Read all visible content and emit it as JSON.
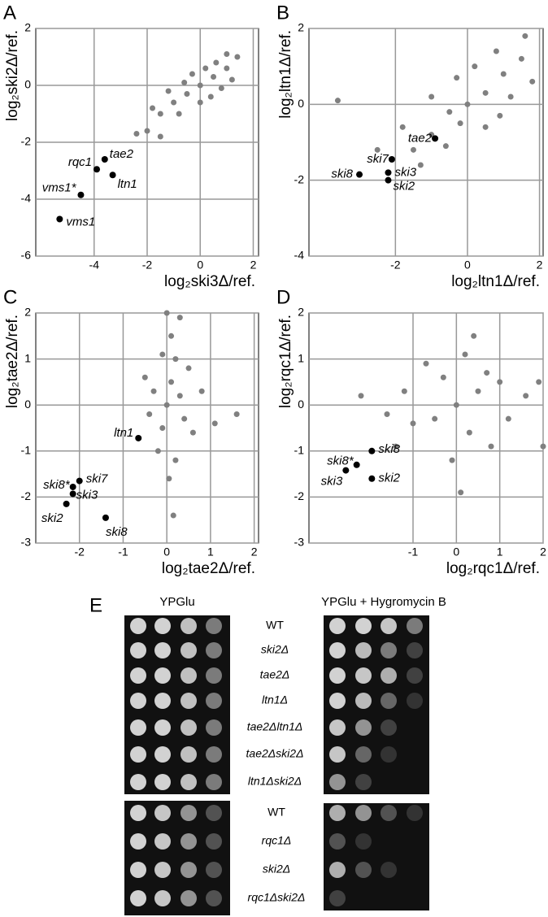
{
  "chart_data": [
    {
      "type": "scatter",
      "panel": "A",
      "xlabel": "log₂ski3Δ/ref.",
      "ylabel": "log₂ski2Δ/ref.",
      "xlim": [
        -6.2,
        2.2
      ],
      "ylim": [
        -6,
        2
      ],
      "xticks": [
        -4,
        -2,
        0,
        2
      ],
      "yticks": [
        2,
        0,
        -2,
        -4,
        -6
      ],
      "grid": true,
      "series": [
        {
          "color": "#808080",
          "x": [
            -2,
            -1.5,
            -1,
            -0.5,
            0,
            0.5,
            1,
            1.4,
            -1.2,
            -0.8,
            0.2,
            0.8,
            -0.3,
            0.4,
            -1.8,
            1.2,
            -0.6,
            0.6,
            -2.4,
            0,
            -1.5,
            1.0
          ],
          "values": [
            -1.6,
            -1.0,
            -0.6,
            -0.3,
            0,
            0.3,
            0.6,
            1.0,
            -0.2,
            -1.0,
            0.6,
            -0.1,
            0.4,
            -0.4,
            -0.8,
            0.2,
            0.1,
            0.8,
            -1.7,
            -0.6,
            -1.8,
            1.1
          ]
        },
        {
          "color": "#000000",
          "x": [
            -3.6,
            -3.9,
            -3.3,
            -4.5,
            -5.3
          ],
          "values": [
            -2.6,
            -2.95,
            -3.15,
            -3.85,
            -4.7
          ],
          "labels": [
            "tae2",
            "rqc1",
            "ltn1",
            "vms1*",
            "vms1"
          ]
        }
      ]
    },
    {
      "type": "scatter",
      "panel": "B",
      "xlabel": "log₂ltn1Δ/ref.",
      "ylabel": "log₂ltn1Δ/ref.",
      "xlim": [
        -4.4,
        2.1
      ],
      "ylim": [
        -4,
        2
      ],
      "xticks": [
        -2,
        0,
        2
      ],
      "yticks": [
        2,
        0,
        -2,
        -4
      ],
      "grid": true,
      "series": [
        {
          "color": "#808080",
          "x": [
            -1.5,
            -1,
            -0.5,
            0,
            0.5,
            1,
            1.5,
            -1,
            0.5,
            -0.3,
            1.2,
            -1.8,
            0.8,
            -0.6,
            0.2,
            1.8,
            -2.5,
            -1.3,
            0.9,
            -3.6,
            1.6,
            -0.2
          ],
          "values": [
            -1.2,
            -0.8,
            -0.2,
            0,
            0.3,
            0.8,
            1.2,
            0.2,
            -0.6,
            0.7,
            0.2,
            -0.6,
            1.4,
            -1.1,
            1.0,
            0.6,
            -1.2,
            -1.6,
            -0.3,
            0.1,
            1.8,
            -0.5
          ]
        },
        {
          "color": "#000000",
          "x": [
            -0.9,
            -2.1,
            -2.2,
            -2.2,
            -3.0
          ],
          "values": [
            -0.9,
            -1.45,
            -1.8,
            -2.0,
            -1.85
          ],
          "labels": [
            "tae2",
            "ski7",
            "ski3",
            "ski2",
            "ski8"
          ]
        }
      ]
    },
    {
      "type": "scatter",
      "panel": "C",
      "xlabel": "log₂tae2Δ/ref.",
      "ylabel": "log₂tae2Δ/ref.",
      "xlim": [
        -3,
        2.1
      ],
      "ylim": [
        -3,
        2
      ],
      "xticks": [
        -2,
        -1,
        0,
        1,
        2
      ],
      "yticks": [
        2,
        1,
        0,
        -1,
        -2,
        -3
      ],
      "grid": true,
      "series": [
        {
          "color": "#808080",
          "x": [
            0,
            0.1,
            -0.1,
            0.2,
            -0.2,
            0.3,
            -0.3,
            0.4,
            0.1,
            0,
            0.2,
            0.6,
            -0.4,
            0.8,
            1.1,
            0.05,
            -0.1,
            1.6,
            0.5,
            -0.5,
            0.15,
            0.3
          ],
          "values": [
            0,
            0.5,
            -0.5,
            1,
            -1,
            0.2,
            0.3,
            -0.3,
            1.5,
            2,
            -1.2,
            -0.6,
            -0.2,
            0.3,
            -0.4,
            -1.6,
            1.1,
            -0.2,
            0.8,
            0.6,
            -2.4,
            1.9
          ]
        },
        {
          "color": "#000000",
          "x": [
            -0.65,
            -2.0,
            -2.15,
            -2.15,
            -2.3,
            -1.4
          ],
          "values": [
            -0.72,
            -1.65,
            -1.78,
            -1.93,
            -2.15,
            -2.45
          ],
          "labels": [
            "ltn1",
            "ski7",
            "ski8*",
            "ski3",
            "ski2",
            "ski8"
          ]
        }
      ]
    },
    {
      "type": "scatter",
      "panel": "D",
      "xlabel": "log₂rqc1Δ/ref.",
      "ylabel": "log₂rqc1Δ/ref.",
      "xlim": [
        -3.4,
        2
      ],
      "ylim": [
        -3,
        2
      ],
      "xticks": [
        -1,
        0,
        1,
        2
      ],
      "yticks": [
        2,
        1,
        0,
        -1,
        -2,
        -3
      ],
      "grid": true,
      "series": [
        {
          "color": "#808080",
          "x": [
            0,
            0.5,
            -0.5,
            1,
            -1,
            0.3,
            -0.3,
            1.2,
            -1.2,
            0.2,
            -0.1,
            1.6,
            -1.6,
            0.8,
            -0.7,
            0.4,
            1.9,
            -2.2,
            0.1,
            2,
            -1.4,
            0.7
          ],
          "values": [
            0,
            0.3,
            -0.3,
            0.5,
            -0.4,
            -0.6,
            0.6,
            -0.3,
            0.3,
            1.1,
            -1.2,
            0.2,
            -0.2,
            -0.9,
            0.9,
            1.5,
            0.5,
            0.2,
            -1.9,
            -0.9,
            -0.9,
            0.7
          ]
        },
        {
          "color": "#000000",
          "x": [
            -1.95,
            -2.3,
            -2.55,
            -1.95
          ],
          "values": [
            -1.0,
            -1.3,
            -1.42,
            -1.6
          ],
          "labels": [
            "ski8",
            "ski8*",
            "ski3",
            "ski2"
          ]
        }
      ]
    }
  ],
  "panel_e": {
    "panel": "E",
    "conditions": [
      "YPGlu",
      "YPGlu + Hygromycin B"
    ],
    "strains_top": [
      "WT",
      "ski2Δ",
      "tae2Δ",
      "ltn1Δ",
      "tae2Δltn1Δ",
      "tae2Δski2Δ",
      "ltn1Δski2Δ"
    ],
    "strains_bottom": [
      "WT",
      "rqc1Δ",
      "ski2Δ",
      "rqc1Δski2Δ"
    ]
  }
}
